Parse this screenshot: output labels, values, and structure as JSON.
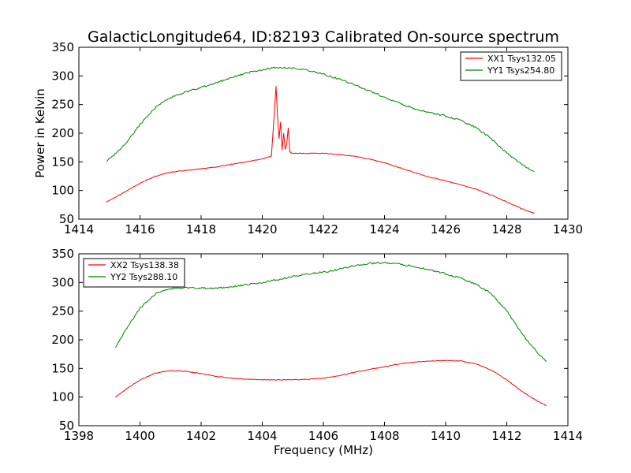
{
  "chart_data": [
    {
      "type": "line",
      "title": "GalacticLongitude64, ID:82193 Calibrated On-source spectrum",
      "xlabel": "",
      "ylabel": "Power in Kelvin",
      "xlim": [
        1414,
        1430
      ],
      "ylim": [
        50,
        350
      ],
      "xticks": [
        1414,
        1416,
        1418,
        1420,
        1422,
        1424,
        1426,
        1428,
        1430
      ],
      "yticks": [
        50,
        100,
        150,
        200,
        250,
        300,
        350
      ],
      "legend_position": "top-right",
      "grid": false,
      "series": [
        {
          "name": "XX1 Tsys132.05",
          "color": "#ff0000",
          "x": [
            1414.9,
            1415.5,
            1416.0,
            1416.5,
            1417.0,
            1417.5,
            1418.0,
            1418.5,
            1419.0,
            1419.5,
            1420.0,
            1420.3,
            1420.4,
            1420.45,
            1420.5,
            1420.55,
            1420.6,
            1420.65,
            1420.7,
            1420.75,
            1420.8,
            1420.85,
            1420.9,
            1420.95,
            1421.0,
            1421.5,
            1422.0,
            1422.5,
            1423.0,
            1423.5,
            1424.0,
            1424.5,
            1425.0,
            1425.5,
            1426.0,
            1426.5,
            1427.0,
            1427.5,
            1428.0,
            1428.5,
            1428.9
          ],
          "y": [
            80,
            97,
            113,
            125,
            132,
            135,
            138,
            141,
            146,
            150,
            155,
            160,
            240,
            282,
            230,
            190,
            220,
            170,
            200,
            172,
            180,
            210,
            168,
            165,
            165,
            165,
            165,
            163,
            160,
            155,
            148,
            140,
            131,
            123,
            117,
            110,
            102,
            92,
            80,
            68,
            60
          ]
        },
        {
          "name": "YY1 Tsys254.80",
          "color": "#008000",
          "x": [
            1414.9,
            1415.5,
            1416.0,
            1416.5,
            1417.0,
            1417.5,
            1418.0,
            1418.5,
            1419.0,
            1419.5,
            1420.0,
            1420.5,
            1421.0,
            1421.5,
            1422.0,
            1422.5,
            1423.0,
            1423.5,
            1424.0,
            1424.5,
            1425.0,
            1425.5,
            1426.0,
            1426.5,
            1427.0,
            1427.5,
            1428.0,
            1428.5,
            1428.9
          ],
          "y": [
            150,
            180,
            215,
            245,
            262,
            272,
            280,
            288,
            297,
            305,
            311,
            315,
            313,
            310,
            303,
            295,
            285,
            274,
            263,
            252,
            243,
            236,
            230,
            222,
            210,
            190,
            165,
            145,
            133
          ]
        }
      ]
    },
    {
      "type": "line",
      "title": "",
      "xlabel": "Frequency (MHz)",
      "ylabel": "",
      "xlim": [
        1398,
        1414
      ],
      "ylim": [
        50,
        350
      ],
      "xticks": [
        1398,
        1400,
        1402,
        1404,
        1406,
        1408,
        1410,
        1412,
        1414
      ],
      "yticks": [
        50,
        100,
        150,
        200,
        250,
        300,
        350
      ],
      "legend_position": "top-left",
      "grid": false,
      "series": [
        {
          "name": "XX2 Tsys138.38",
          "color": "#ff0000",
          "x": [
            1399.2,
            1399.5,
            1400.0,
            1400.5,
            1401.0,
            1401.5,
            1402.0,
            1402.5,
            1403.0,
            1403.5,
            1404.0,
            1404.5,
            1405.0,
            1405.5,
            1406.0,
            1406.5,
            1407.0,
            1407.5,
            1408.0,
            1408.5,
            1409.0,
            1409.5,
            1410.0,
            1410.5,
            1411.0,
            1411.5,
            1412.0,
            1412.5,
            1413.0,
            1413.3
          ],
          "y": [
            100,
            112,
            130,
            142,
            146,
            145,
            141,
            136,
            133,
            131,
            130,
            130,
            130,
            131,
            133,
            137,
            143,
            148,
            153,
            158,
            161,
            163,
            164,
            163,
            158,
            147,
            130,
            110,
            93,
            85
          ]
        },
        {
          "name": "YY2 Tsys288.10",
          "color": "#008000",
          "x": [
            1399.2,
            1399.5,
            1400.0,
            1400.5,
            1401.0,
            1401.5,
            1402.0,
            1402.5,
            1403.0,
            1403.5,
            1404.0,
            1404.5,
            1405.0,
            1405.5,
            1406.0,
            1406.5,
            1407.0,
            1407.5,
            1408.0,
            1408.5,
            1409.0,
            1409.5,
            1410.0,
            1410.5,
            1411.0,
            1411.5,
            1412.0,
            1412.5,
            1413.0,
            1413.3
          ],
          "y": [
            186,
            215,
            255,
            280,
            289,
            291,
            290,
            290,
            292,
            296,
            300,
            305,
            310,
            315,
            318,
            323,
            329,
            333,
            335,
            332,
            328,
            322,
            315,
            307,
            297,
            280,
            250,
            210,
            178,
            162
          ]
        }
      ]
    }
  ]
}
